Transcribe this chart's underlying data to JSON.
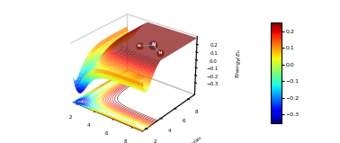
{
  "xlabel": "R_{NH}/a_0",
  "ylabel": "R_{NH}/a_0",
  "zlabel": "Energy/E_h",
  "x_range": [
    1.5,
    9.0
  ],
  "y_range": [
    1.5,
    9.0
  ],
  "vmin": -0.35,
  "vmax": 0.25,
  "colorbar_ticks": [
    0.2,
    0.1,
    0.0,
    -0.1,
    -0.2,
    -0.3
  ],
  "cmap": "jet",
  "contour_levels": 35,
  "re": 1.92,
  "De": 0.36,
  "a": 1.15,
  "elev": 28,
  "azim": -52,
  "dist": 7.5,
  "n_atom_color": "#6080a0",
  "h_atom_color": "#a07850",
  "N_label": "N",
  "H_label": "H",
  "zticks": [
    0.2,
    0.1,
    0.0,
    -0.1,
    -0.2,
    -0.3
  ],
  "xticks": [
    2,
    4,
    6,
    8
  ],
  "yticks": [
    2,
    4,
    6,
    8
  ]
}
